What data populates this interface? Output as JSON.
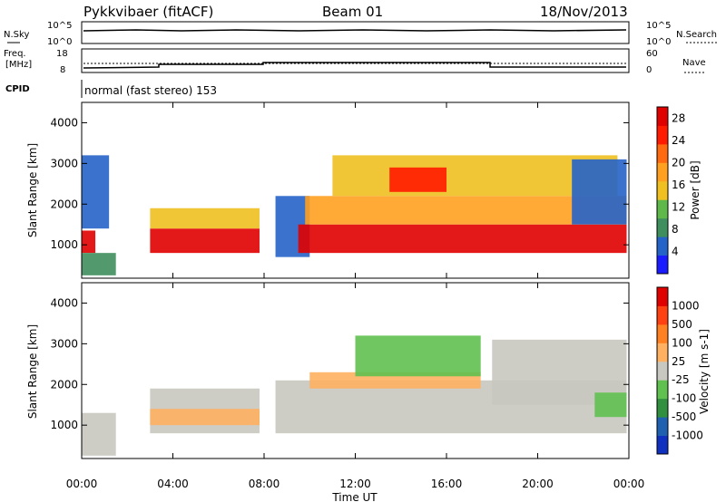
{
  "header": {
    "station": "Pykkvibaer (fitACF)",
    "beam": "Beam 01",
    "date": "18/Nov/2013"
  },
  "summary": {
    "left_labels": {
      "nsky": "N.Sky",
      "freq_line1": "Freq.",
      "freq_line2": "[MHz]",
      "cpid": "CPID"
    },
    "right_labels": {
      "nsearch": "N.Search",
      "nave": "Nave"
    },
    "noise_ticks_left": [
      "10^5",
      "10^0"
    ],
    "noise_ticks_right": [
      "10^5",
      "10^0"
    ],
    "freq_ticks": [
      "18",
      "8"
    ],
    "nave_ticks": [
      "60",
      "0"
    ],
    "cpid_text": "normal (fast stereo) 153"
  },
  "colors": {
    "power_scale": [
      "#1b1bff",
      "#2563c8",
      "#3f8f5e",
      "#5fb84a",
      "#f0c020",
      "#ffa020",
      "#ff6a10",
      "#ff1a00",
      "#e00000"
    ],
    "velocity_scale": [
      "#1030c0",
      "#2060b0",
      "#309040",
      "#60c050",
      "#c8c8c0",
      "#ffb060",
      "#ff8020",
      "#ff4010",
      "#e00000"
    ]
  },
  "chart_data": [
    {
      "type": "heatmap",
      "panel": "power",
      "ylabel": "Slant Range [km]",
      "ylim": [
        180,
        4500
      ],
      "yticks": [
        "1000",
        "2000",
        "3000",
        "4000"
      ],
      "xlim": [
        "00:00",
        "24:00"
      ],
      "colorbar": {
        "label": "Power [dB]",
        "ticks": [
          "4",
          "8",
          "12",
          "16",
          "20",
          "24",
          "28"
        ],
        "range": [
          0,
          30
        ]
      },
      "regions": [
        {
          "t0": 0.0,
          "t1": 0.6,
          "r0": 800,
          "r1": 1350,
          "level": 27
        },
        {
          "t0": 0.0,
          "t1": 1.5,
          "r0": 250,
          "r1": 800,
          "level": 8
        },
        {
          "t0": 0.0,
          "t1": 1.2,
          "r0": 1400,
          "r1": 3200,
          "level": 6
        },
        {
          "t0": 3.0,
          "t1": 7.8,
          "r0": 800,
          "r1": 1400,
          "level": 27
        },
        {
          "t0": 3.0,
          "t1": 7.8,
          "r0": 1400,
          "r1": 1900,
          "level": 14
        },
        {
          "t0": 8.5,
          "t1": 10.0,
          "r0": 700,
          "r1": 2200,
          "level": 5
        },
        {
          "t0": 9.5,
          "t1": 23.9,
          "r0": 800,
          "r1": 1500,
          "level": 27
        },
        {
          "t0": 9.8,
          "t1": 23.9,
          "r0": 1500,
          "r1": 2200,
          "level": 19
        },
        {
          "t0": 11.0,
          "t1": 23.5,
          "r0": 2200,
          "r1": 3200,
          "level": 16
        },
        {
          "t0": 13.5,
          "t1": 16.0,
          "r0": 2300,
          "r1": 2900,
          "level": 24
        },
        {
          "t0": 21.5,
          "t1": 23.9,
          "r0": 1500,
          "r1": 3100,
          "level": 6
        }
      ]
    },
    {
      "type": "heatmap",
      "panel": "velocity",
      "ylabel": "Slant Range [km]",
      "ylim": [
        180,
        4500
      ],
      "yticks": [
        "1000",
        "2000",
        "3000",
        "4000"
      ],
      "xlim": [
        "00:00",
        "24:00"
      ],
      "xticks": [
        "00:00",
        "04:00",
        "08:00",
        "12:00",
        "16:00",
        "20:00",
        "00:00"
      ],
      "xlabel": "Time UT",
      "colorbar": {
        "label": "Velocity [m s-1]",
        "ticks": [
          "1000",
          "500",
          "100",
          "25",
          "-25",
          "-100",
          "-500",
          "-1000"
        ],
        "range": [
          -1200,
          1200
        ]
      },
      "regions": [
        {
          "t0": 0.0,
          "t1": 1.5,
          "r0": 250,
          "r1": 1300,
          "level": 20
        },
        {
          "t0": 3.0,
          "t1": 7.8,
          "r0": 800,
          "r1": 1900,
          "level": -50
        },
        {
          "t0": 3.0,
          "t1": 7.8,
          "r0": 1000,
          "r1": 1400,
          "level": 300
        },
        {
          "t0": 8.5,
          "t1": 23.9,
          "r0": 800,
          "r1": 2100,
          "level": 0
        },
        {
          "t0": 10.0,
          "t1": 17.5,
          "r0": 1900,
          "r1": 2300,
          "level": 300
        },
        {
          "t0": 12.0,
          "t1": 17.5,
          "r0": 2200,
          "r1": 3200,
          "level": -300
        },
        {
          "t0": 18.0,
          "t1": 23.9,
          "r0": 1500,
          "r1": 3100,
          "level": 0
        },
        {
          "t0": 22.5,
          "t1": 23.9,
          "r0": 1200,
          "r1": 1800,
          "level": -150
        }
      ]
    }
  ]
}
